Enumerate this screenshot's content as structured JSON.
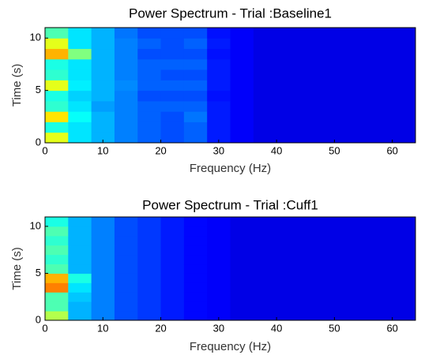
{
  "chart_data": [
    {
      "type": "heatmap",
      "title": "Power Spectrum - Trial :Baseline1",
      "x_label": "Frequency (Hz)",
      "y_label": "Time (s)",
      "colormap": "jet",
      "x": [
        2,
        6,
        10,
        14,
        18,
        22,
        26,
        30,
        34,
        38,
        42,
        46,
        50,
        54,
        58,
        62
      ],
      "y": [
        0.5,
        1.5,
        2.5,
        3.5,
        4.5,
        5.5,
        6.5,
        7.5,
        8.5,
        9.5,
        10.5
      ],
      "values": [
        [
          0.6,
          0.35,
          0.3,
          0.25,
          0.22,
          0.2,
          0.22,
          0.15,
          0.12,
          0.1,
          0.1,
          0.1,
          0.1,
          0.1,
          0.1,
          0.1
        ],
        [
          0.4,
          0.35,
          0.3,
          0.25,
          0.22,
          0.2,
          0.22,
          0.15,
          0.12,
          0.1,
          0.1,
          0.1,
          0.1,
          0.1,
          0.1,
          0.1
        ],
        [
          0.65,
          0.38,
          0.3,
          0.25,
          0.22,
          0.2,
          0.24,
          0.15,
          0.12,
          0.1,
          0.1,
          0.1,
          0.1,
          0.1,
          0.1,
          0.1
        ],
        [
          0.42,
          0.35,
          0.28,
          0.25,
          0.22,
          0.22,
          0.22,
          0.15,
          0.12,
          0.1,
          0.1,
          0.1,
          0.1,
          0.1,
          0.1,
          0.1
        ],
        [
          0.4,
          0.33,
          0.3,
          0.25,
          0.2,
          0.2,
          0.2,
          0.14,
          0.12,
          0.1,
          0.1,
          0.1,
          0.1,
          0.1,
          0.1,
          0.1
        ],
        [
          0.6,
          0.36,
          0.3,
          0.26,
          0.22,
          0.22,
          0.22,
          0.15,
          0.12,
          0.1,
          0.1,
          0.1,
          0.1,
          0.1,
          0.1,
          0.1
        ],
        [
          0.42,
          0.35,
          0.3,
          0.25,
          0.22,
          0.2,
          0.2,
          0.15,
          0.12,
          0.1,
          0.1,
          0.1,
          0.1,
          0.1,
          0.1,
          0.1
        ],
        [
          0.4,
          0.35,
          0.3,
          0.25,
          0.22,
          0.22,
          0.22,
          0.15,
          0.12,
          0.1,
          0.1,
          0.1,
          0.1,
          0.1,
          0.1,
          0.1
        ],
        [
          0.7,
          0.5,
          0.3,
          0.25,
          0.2,
          0.2,
          0.2,
          0.14,
          0.12,
          0.1,
          0.1,
          0.1,
          0.1,
          0.1,
          0.1,
          0.1
        ],
        [
          0.6,
          0.35,
          0.3,
          0.25,
          0.22,
          0.2,
          0.22,
          0.15,
          0.12,
          0.1,
          0.1,
          0.1,
          0.1,
          0.1,
          0.1,
          0.1
        ],
        [
          0.45,
          0.35,
          0.3,
          0.24,
          0.2,
          0.2,
          0.2,
          0.14,
          0.12,
          0.1,
          0.1,
          0.1,
          0.1,
          0.1,
          0.1,
          0.1
        ]
      ],
      "xlim": [
        0,
        64
      ],
      "ylim": [
        0,
        11
      ],
      "xticks": [
        0,
        10,
        20,
        30,
        40,
        50,
        60
      ],
      "yticks": [
        0,
        5,
        10
      ]
    },
    {
      "type": "heatmap",
      "title": "Power Spectrum - Trial :Cuff1",
      "x_label": "Frequency (Hz)",
      "y_label": "Time (s)",
      "colormap": "jet",
      "x": [
        2,
        6,
        10,
        14,
        18,
        22,
        26,
        30,
        34,
        38,
        42,
        46,
        50,
        54,
        58,
        62
      ],
      "y": [
        0.5,
        1.5,
        2.5,
        3.5,
        4.5,
        5.5,
        6.5,
        7.5,
        8.5,
        9.5,
        10.5
      ],
      "values": [
        [
          0.55,
          0.3,
          0.25,
          0.2,
          0.18,
          0.15,
          0.13,
          0.12,
          0.1,
          0.1,
          0.1,
          0.1,
          0.1,
          0.1,
          0.1,
          0.1
        ],
        [
          0.45,
          0.3,
          0.25,
          0.2,
          0.18,
          0.15,
          0.13,
          0.12,
          0.1,
          0.1,
          0.1,
          0.1,
          0.1,
          0.1,
          0.1,
          0.1
        ],
        [
          0.45,
          0.32,
          0.25,
          0.2,
          0.18,
          0.15,
          0.13,
          0.12,
          0.1,
          0.1,
          0.1,
          0.1,
          0.1,
          0.1,
          0.1,
          0.1
        ],
        [
          0.75,
          0.35,
          0.25,
          0.2,
          0.18,
          0.15,
          0.13,
          0.12,
          0.1,
          0.1,
          0.1,
          0.1,
          0.1,
          0.1,
          0.1,
          0.1
        ],
        [
          0.7,
          0.4,
          0.25,
          0.2,
          0.18,
          0.15,
          0.13,
          0.12,
          0.1,
          0.1,
          0.1,
          0.1,
          0.1,
          0.1,
          0.1,
          0.1
        ],
        [
          0.45,
          0.3,
          0.25,
          0.2,
          0.18,
          0.15,
          0.13,
          0.12,
          0.1,
          0.1,
          0.1,
          0.1,
          0.1,
          0.1,
          0.1,
          0.1
        ],
        [
          0.42,
          0.3,
          0.25,
          0.2,
          0.18,
          0.15,
          0.13,
          0.12,
          0.1,
          0.1,
          0.1,
          0.1,
          0.1,
          0.1,
          0.1,
          0.1
        ],
        [
          0.45,
          0.3,
          0.25,
          0.2,
          0.18,
          0.15,
          0.13,
          0.12,
          0.1,
          0.1,
          0.1,
          0.1,
          0.1,
          0.1,
          0.1,
          0.1
        ],
        [
          0.42,
          0.3,
          0.25,
          0.2,
          0.18,
          0.15,
          0.13,
          0.12,
          0.1,
          0.1,
          0.1,
          0.1,
          0.1,
          0.1,
          0.1,
          0.1
        ],
        [
          0.45,
          0.3,
          0.25,
          0.2,
          0.18,
          0.15,
          0.13,
          0.12,
          0.1,
          0.1,
          0.1,
          0.1,
          0.1,
          0.1,
          0.1,
          0.1
        ],
        [
          0.4,
          0.3,
          0.25,
          0.2,
          0.18,
          0.15,
          0.13,
          0.12,
          0.1,
          0.1,
          0.1,
          0.1,
          0.1,
          0.1,
          0.1,
          0.1
        ]
      ],
      "xlim": [
        0,
        64
      ],
      "ylim": [
        0,
        11
      ],
      "xticks": [
        0,
        10,
        20,
        30,
        40,
        50,
        60
      ],
      "yticks": [
        0,
        5,
        10
      ]
    }
  ]
}
